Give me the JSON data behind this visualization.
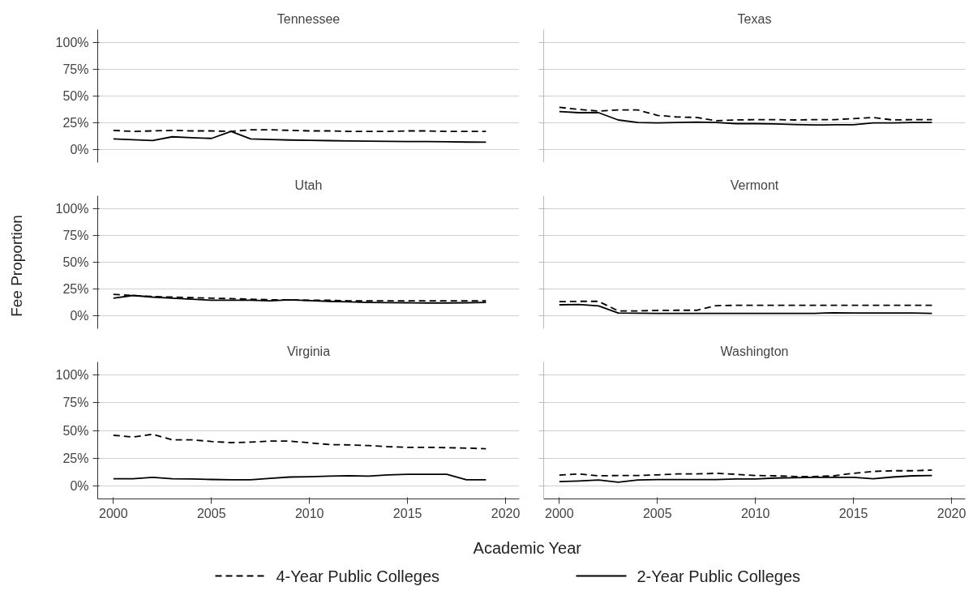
{
  "chart_data": [
    {
      "type": "line",
      "title": "Tennessee",
      "x": [
        2000,
        2001,
        2002,
        2003,
        2004,
        2005,
        2006,
        2007,
        2008,
        2009,
        2010,
        2011,
        2012,
        2013,
        2014,
        2015,
        2016,
        2017,
        2018,
        2019
      ],
      "series": [
        {
          "name": "4-Year Public Colleges",
          "color": "#000000",
          "line_style": "dashed",
          "values": [
            18,
            17,
            17.5,
            18,
            17.5,
            17.5,
            17,
            18.5,
            18.5,
            18,
            17.5,
            17.5,
            17,
            17,
            17,
            17.5,
            17.5,
            17,
            17,
            17
          ]
        },
        {
          "name": "2-Year Public Colleges",
          "color": "#000000",
          "line_style": "solid",
          "values": [
            10,
            9.2,
            8.5,
            12,
            11.2,
            10.5,
            17,
            10,
            9.5,
            9,
            8.7,
            8.4,
            8.2,
            8,
            7.8,
            7.6,
            7.5,
            7.3,
            7.1,
            7
          ]
        }
      ],
      "xlim": [
        1999.2,
        2020.7
      ],
      "ylim": [
        -12,
        112
      ],
      "yticks": [
        {
          "value": 0,
          "label": "0%"
        },
        {
          "value": 25,
          "label": "25%"
        },
        {
          "value": 50,
          "label": "50%"
        },
        {
          "value": 75,
          "label": "75%"
        },
        {
          "value": 100,
          "label": "100%"
        }
      ],
      "grid": "y",
      "tick_labels": "y",
      "legend": "bottom"
    },
    {
      "type": "line",
      "title": "Texas",
      "x": [
        2000,
        2001,
        2002,
        2003,
        2004,
        2005,
        2006,
        2007,
        2008,
        2009,
        2010,
        2011,
        2012,
        2013,
        2014,
        2015,
        2016,
        2017,
        2018,
        2019
      ],
      "series": [
        {
          "color": "#000000",
          "line_style": "dashed",
          "values": [
            39.5,
            37.5,
            36,
            37,
            37,
            32,
            30.5,
            30,
            27,
            27.7,
            28,
            28,
            27.7,
            28,
            28,
            29,
            30,
            27.7,
            28,
            28
          ]
        },
        {
          "color": "#000000",
          "line_style": "solid",
          "values": [
            35.6,
            34.5,
            34.5,
            27.7,
            25.4,
            25,
            25.4,
            25.7,
            25.4,
            24.3,
            24.3,
            24,
            23.4,
            23,
            23.2,
            23.2,
            25,
            25,
            25.4,
            25.4
          ]
        }
      ],
      "xlim": [
        1999.2,
        2020.7
      ],
      "ylim": [
        -12,
        112
      ],
      "yticks": [
        {
          "value": 0,
          "label": null
        },
        {
          "value": 25,
          "label": null
        },
        {
          "value": 50,
          "label": null
        },
        {
          "value": 75,
          "label": null
        },
        {
          "value": 100,
          "label": null
        }
      ],
      "grid": "y",
      "tick_labels": false
    },
    {
      "type": "line",
      "title": "Utah",
      "ylabel": "Fee Proportion",
      "x": [
        2000,
        2001,
        2002,
        2003,
        2004,
        2005,
        2006,
        2007,
        2008,
        2009,
        2010,
        2011,
        2012,
        2013,
        2014,
        2015,
        2016,
        2017,
        2018,
        2019
      ],
      "series": [
        {
          "color": "#000000",
          "line_style": "dashed",
          "values": [
            20,
            19,
            18,
            17.5,
            17,
            16.5,
            16,
            15.5,
            15,
            15,
            14.5,
            14.5,
            14,
            14,
            14,
            14,
            14,
            14,
            14,
            14
          ]
        },
        {
          "color": "#000000",
          "line_style": "solid",
          "values": [
            16.5,
            19,
            17.5,
            16.5,
            15.5,
            14.5,
            14.5,
            14.5,
            14,
            15,
            14.2,
            13.5,
            13,
            12.5,
            12.3,
            12.2,
            12,
            12,
            12.2,
            12.5
          ]
        }
      ],
      "xlim": [
        1999.2,
        2020.7
      ],
      "ylim": [
        -12,
        112
      ],
      "yticks": [
        {
          "value": 0,
          "label": "0%"
        },
        {
          "value": 25,
          "label": "25%"
        },
        {
          "value": 50,
          "label": "50%"
        },
        {
          "value": 75,
          "label": "75%"
        },
        {
          "value": 100,
          "label": "100%"
        }
      ],
      "grid": "y",
      "tick_labels": "y"
    },
    {
      "type": "line",
      "title": "Vermont",
      "x": [
        2000,
        2001,
        2002,
        2003,
        2004,
        2005,
        2006,
        2007,
        2008,
        2009,
        2010,
        2011,
        2012,
        2013,
        2014,
        2015,
        2016,
        2017,
        2018,
        2019
      ],
      "series": [
        {
          "color": "#000000",
          "line_style": "dashed",
          "values": [
            13.2,
            13.5,
            13.5,
            4.6,
            4.6,
            5,
            5.2,
            5.2,
            9.5,
            9.8,
            9.8,
            9.8,
            9.8,
            9.8,
            9.8,
            9.8,
            9.8,
            9.8,
            9.8,
            9.8
          ]
        },
        {
          "color": "#000000",
          "line_style": "solid",
          "values": [
            10.3,
            10.6,
            9.2,
            2.6,
            2.4,
            2.3,
            2.3,
            2.3,
            2.3,
            2.3,
            2.3,
            2.3,
            2.3,
            2.3,
            2.9,
            2.6,
            2.6,
            2.6,
            2.6,
            2.3
          ]
        }
      ],
      "xlim": [
        1999.2,
        2020.7
      ],
      "ylim": [
        -12,
        112
      ],
      "yticks": [
        {
          "value": 0,
          "label": null
        },
        {
          "value": 25,
          "label": null
        },
        {
          "value": 50,
          "label": null
        },
        {
          "value": 75,
          "label": null
        },
        {
          "value": 100,
          "label": null
        }
      ],
      "grid": "y",
      "tick_labels": false
    },
    {
      "type": "line",
      "title": "Virginia",
      "xlabel": "Academic Year",
      "x": [
        2000,
        2001,
        2002,
        2003,
        2004,
        2005,
        2006,
        2007,
        2008,
        2009,
        2010,
        2011,
        2012,
        2013,
        2014,
        2015,
        2016,
        2017,
        2018,
        2019
      ],
      "series": [
        {
          "color": "#000000",
          "line_style": "dashed",
          "values": [
            45.6,
            44,
            46.5,
            41.5,
            41.5,
            40,
            39,
            39.4,
            40.3,
            40.3,
            38.8,
            37.2,
            36.9,
            36.3,
            35.3,
            34.7,
            34.7,
            34.4,
            34,
            33.4
          ]
        },
        {
          "color": "#000000",
          "line_style": "solid",
          "values": [
            6.2,
            6.2,
            7.5,
            6.2,
            6,
            5.6,
            5.3,
            5.3,
            6.6,
            7.8,
            8.1,
            8.7,
            9,
            8.7,
            9.7,
            10.3,
            10.3,
            10.3,
            5.3,
            5.3
          ]
        }
      ],
      "xlim": [
        1999.2,
        2020.7
      ],
      "xticks": [
        2000,
        2005,
        2010,
        2015,
        2020
      ],
      "ylim": [
        -12,
        112
      ],
      "yticks": [
        {
          "value": 0,
          "label": "0%"
        },
        {
          "value": 25,
          "label": "25%"
        },
        {
          "value": 50,
          "label": "50%"
        },
        {
          "value": 75,
          "label": "75%"
        },
        {
          "value": 100,
          "label": "100%"
        }
      ],
      "grid": "y"
    },
    {
      "type": "line",
      "title": "Washington",
      "x": [
        2000,
        2001,
        2002,
        2003,
        2004,
        2005,
        2006,
        2007,
        2008,
        2009,
        2010,
        2011,
        2012,
        2013,
        2014,
        2015,
        2016,
        2017,
        2018,
        2019
      ],
      "series": [
        {
          "color": "#000000",
          "line_style": "dashed",
          "values": [
            9.5,
            10.6,
            8.9,
            9.2,
            9.2,
            9.8,
            10.6,
            10.6,
            11.2,
            10.3,
            9.2,
            8.9,
            8.3,
            8.3,
            8.9,
            11.2,
            12.9,
            13.5,
            13.5,
            14.1
          ]
        },
        {
          "color": "#000000",
          "line_style": "solid",
          "values": [
            3.7,
            4.3,
            5.2,
            3.2,
            5.2,
            5.5,
            5.5,
            5.5,
            5.5,
            6,
            6,
            6.9,
            7.2,
            7.5,
            7.5,
            7.5,
            6.3,
            7.8,
            8.9,
            9.2
          ]
        }
      ],
      "xlim": [
        1999.2,
        2020.7
      ],
      "xticks": [
        2000,
        2005,
        2010,
        2015,
        2020
      ],
      "ylim": [
        -12,
        112
      ],
      "yticks": [
        {
          "value": 0,
          "label": null
        },
        {
          "value": 25,
          "label": null
        },
        {
          "value": 50,
          "label": null
        },
        {
          "value": 75,
          "label": null
        },
        {
          "value": 100,
          "label": null
        }
      ],
      "grid": "y",
      "tick_labels": "x"
    }
  ]
}
